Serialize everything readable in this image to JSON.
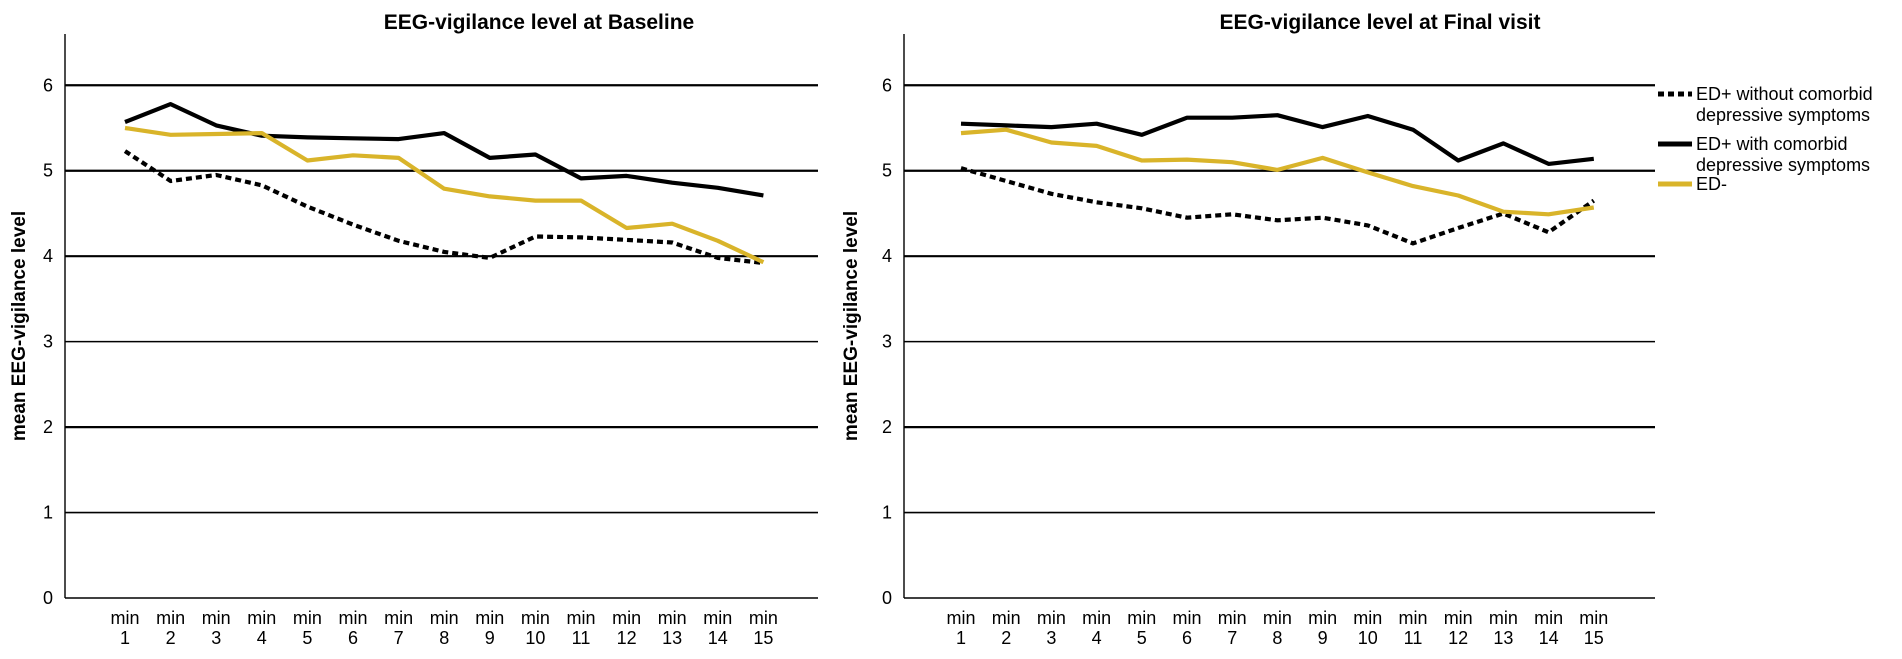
{
  "legend": [
    {
      "name": "ED+ without comorbid depressive symptoms",
      "lines": [
        "ED+ without comorbid",
        "depressive symptoms"
      ],
      "style": "dotted",
      "color": "#000000"
    },
    {
      "name": "ED+ with comorbid depressive symptoms",
      "lines": [
        "ED+ with comorbid",
        "depressive symptoms"
      ],
      "style": "solid",
      "color": "#000000"
    },
    {
      "name": "ED-",
      "lines": [
        "ED-"
      ],
      "style": "solid",
      "color": "#D9B42A"
    }
  ],
  "chart_data": [
    {
      "type": "line",
      "title": "EEG-vigilance level at Baseline",
      "xlabel": "",
      "ylabel": "mean EEG-vigilance level",
      "ylim": [
        0,
        6.6
      ],
      "yticks": [
        "0",
        "1",
        "2",
        "3",
        "4",
        "5",
        "6"
      ],
      "grid": true,
      "categories": [
        {
          "top": "min",
          "bottom": "1"
        },
        {
          "top": "min",
          "bottom": "2"
        },
        {
          "top": "min",
          "bottom": "3"
        },
        {
          "top": "min",
          "bottom": "4"
        },
        {
          "top": "min",
          "bottom": "5"
        },
        {
          "top": "min",
          "bottom": "6"
        },
        {
          "top": "min",
          "bottom": "7"
        },
        {
          "top": "min",
          "bottom": "8"
        },
        {
          "top": "min",
          "bottom": "9"
        },
        {
          "top": "min",
          "bottom": "10"
        },
        {
          "top": "min",
          "bottom": "11"
        },
        {
          "top": "min",
          "bottom": "12"
        },
        {
          "top": "min",
          "bottom": "13"
        },
        {
          "top": "min",
          "bottom": "14"
        },
        {
          "top": "min",
          "bottom": "15"
        }
      ],
      "series": [
        {
          "name": "ED+ without comorbid depressive symptoms",
          "style": "dotted",
          "color": "#000000",
          "values": [
            5.23,
            4.88,
            4.95,
            4.83,
            4.58,
            4.37,
            4.18,
            4.05,
            3.98,
            4.23,
            4.22,
            4.19,
            4.16,
            3.98,
            3.92
          ]
        },
        {
          "name": "ED+ with comorbid depressive symptoms",
          "style": "solid",
          "color": "#000000",
          "values": [
            5.57,
            5.78,
            5.53,
            5.41,
            5.39,
            5.38,
            5.37,
            5.44,
            5.15,
            5.19,
            4.91,
            4.94,
            4.86,
            4.8,
            4.71
          ]
        },
        {
          "name": "ED-",
          "style": "solid",
          "color": "#D9B42A",
          "values": [
            5.5,
            5.42,
            5.43,
            5.44,
            5.12,
            5.18,
            5.15,
            4.79,
            4.7,
            4.65,
            4.65,
            4.33,
            4.38,
            4.18,
            3.93
          ]
        }
      ]
    },
    {
      "type": "line",
      "title": "EEG-vigilance level at Final visit",
      "xlabel": "",
      "ylabel": "mean EEG-vigilance level",
      "ylim": [
        0,
        6.6
      ],
      "yticks": [
        "0",
        "1",
        "2",
        "3",
        "4",
        "5",
        "6"
      ],
      "grid": true,
      "categories": [
        {
          "top": "min",
          "bottom": "1"
        },
        {
          "top": "min",
          "bottom": "2"
        },
        {
          "top": "min",
          "bottom": "3"
        },
        {
          "top": "min",
          "bottom": "4"
        },
        {
          "top": "min",
          "bottom": "5"
        },
        {
          "top": "min",
          "bottom": "6"
        },
        {
          "top": "min",
          "bottom": "7"
        },
        {
          "top": "min",
          "bottom": "8"
        },
        {
          "top": "min",
          "bottom": "9"
        },
        {
          "top": "min",
          "bottom": "10"
        },
        {
          "top": "min",
          "bottom": "11"
        },
        {
          "top": "min",
          "bottom": "12"
        },
        {
          "top": "min",
          "bottom": "13"
        },
        {
          "top": "min",
          "bottom": "14"
        },
        {
          "top": "min",
          "bottom": "15"
        }
      ],
      "series": [
        {
          "name": "ED+ without comorbid depressive symptoms",
          "style": "dotted",
          "color": "#000000",
          "values": [
            5.03,
            4.88,
            4.73,
            4.63,
            4.56,
            4.45,
            4.49,
            4.42,
            4.45,
            4.36,
            4.15,
            4.33,
            4.5,
            4.28,
            4.65
          ]
        },
        {
          "name": "ED+ with comorbid depressive symptoms",
          "style": "solid",
          "color": "#000000",
          "values": [
            5.55,
            5.53,
            5.51,
            5.55,
            5.42,
            5.62,
            5.62,
            5.65,
            5.51,
            5.64,
            5.48,
            5.12,
            5.32,
            5.08,
            5.14
          ]
        },
        {
          "name": "ED-",
          "style": "solid",
          "color": "#D9B42A",
          "values": [
            5.44,
            5.48,
            5.33,
            5.29,
            5.12,
            5.13,
            5.1,
            5.01,
            5.15,
            4.98,
            4.82,
            4.71,
            4.52,
            4.49,
            4.57
          ]
        }
      ]
    }
  ]
}
